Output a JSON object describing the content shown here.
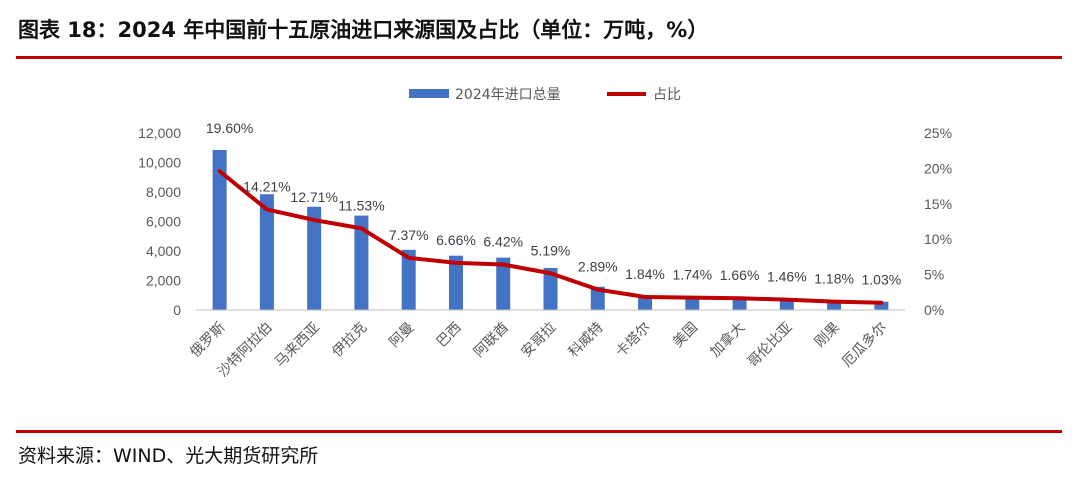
{
  "figure": {
    "title": "图表 18：2024 年中国前十五原油进口来源国及占比（单位：万吨，%）",
    "source": "资料来源：WIND、光大期货研究所",
    "colors": {
      "bar": "#4472c4",
      "line": "#c00000",
      "rule": "#c00000"
    }
  },
  "chart_data": {
    "type": "bar",
    "categories": [
      "俄罗斯",
      "沙特阿拉伯",
      "马来西亚",
      "伊拉克",
      "阿曼",
      "巴西",
      "阿联酋",
      "安哥拉",
      "科威特",
      "卡塔尔",
      "美国",
      "加拿大",
      "哥伦比亚",
      "刚果",
      "厄瓜多尔"
    ],
    "series": [
      {
        "name": "2024年进口总量",
        "type": "bar",
        "axis": "left",
        "values": [
          10850,
          7850,
          7000,
          6400,
          4080,
          3680,
          3550,
          2850,
          1580,
          1010,
          950,
          900,
          800,
          640,
          560
        ]
      },
      {
        "name": "占比",
        "type": "line",
        "axis": "right",
        "values": [
          19.6,
          14.21,
          12.71,
          11.53,
          7.37,
          6.66,
          6.42,
          5.19,
          2.89,
          1.84,
          1.74,
          1.66,
          1.46,
          1.18,
          1.03
        ],
        "data_labels": [
          "19.60%",
          "14.21%",
          "12.71%",
          "11.53%",
          "7.37%",
          "6.66%",
          "6.42%",
          "5.19%",
          "2.89%",
          "1.84%",
          "1.74%",
          "1.66%",
          "1.46%",
          "1.18%",
          "1.03%"
        ]
      }
    ],
    "y_left": {
      "lim": [
        0,
        12000
      ],
      "ticks": [
        0,
        2000,
        4000,
        6000,
        8000,
        10000,
        12000
      ],
      "tick_labels": [
        "0",
        "2,000",
        "4,000",
        "6,000",
        "8,000",
        "10,000",
        "12,000"
      ]
    },
    "y_right": {
      "lim": [
        0,
        25
      ],
      "ticks": [
        0,
        5,
        10,
        15,
        20,
        25
      ],
      "tick_labels": [
        "0%",
        "5%",
        "10%",
        "15%",
        "20%",
        "25%"
      ]
    },
    "legend": {
      "position": "top-center",
      "entries": [
        "2024年进口总量",
        "占比"
      ]
    },
    "grid": false
  }
}
